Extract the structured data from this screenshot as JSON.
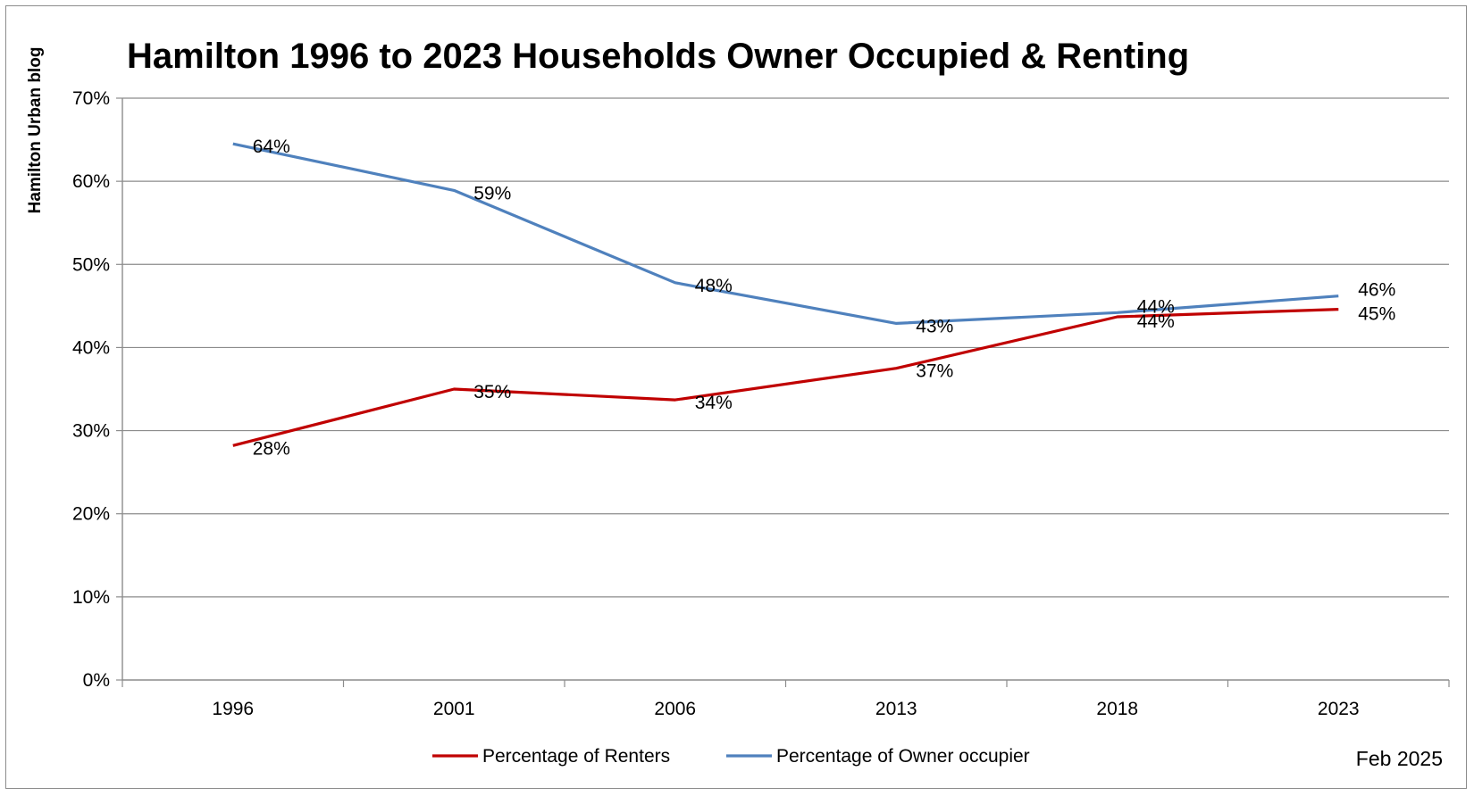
{
  "chart_data": {
    "type": "line",
    "title": "Hamilton 1996 to 2023 Households Owner Occupied & Renting",
    "ylabel": "Hamilton Urban blog",
    "xlabel": "",
    "categories": [
      "1996",
      "2001",
      "2006",
      "2013",
      "2018",
      "2023"
    ],
    "ylim": [
      0,
      70
    ],
    "yticks": [
      "0%",
      "10%",
      "20%",
      "30%",
      "40%",
      "50%",
      "60%",
      "70%"
    ],
    "grid": true,
    "legend_position": "bottom",
    "footer": "Feb 2025",
    "series": [
      {
        "name": "Percentage of Renters",
        "color": "#c00000",
        "values": [
          28.2,
          35.0,
          33.7,
          37.5,
          43.7,
          44.6
        ],
        "labels": [
          "28%",
          "35%",
          "34%",
          "37%",
          "44%",
          "45%"
        ]
      },
      {
        "name": "Percentage of Owner occupier",
        "color": "#4f81bd",
        "values": [
          64.5,
          58.9,
          47.8,
          42.9,
          44.2,
          46.2
        ],
        "labels": [
          "64%",
          "59%",
          "48%",
          "43%",
          "44%",
          "46%"
        ]
      }
    ]
  }
}
